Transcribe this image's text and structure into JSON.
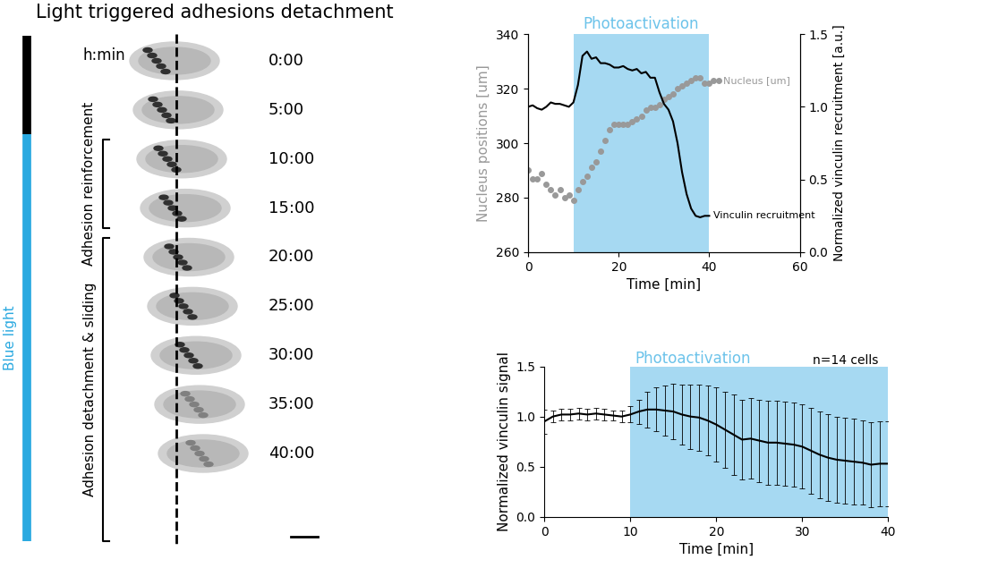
{
  "panel": {
    "title": "Light triggered adhesions detachment",
    "time_header": "h:min",
    "frames": [
      "0:00",
      "5:00",
      "10:00",
      "15:00",
      "20:00",
      "25:00",
      "30:00",
      "35:00",
      "40:00"
    ],
    "light_label": "Blue light",
    "phases": [
      {
        "label": "Adhesion reinforcement",
        "first_frame": 2,
        "last_frame": 3
      },
      {
        "label": "Adhesion detachment & sliding",
        "first_frame": 4,
        "last_frame": 8
      }
    ],
    "light_on_frame": 2
  },
  "chart_data": [
    {
      "type": "line",
      "x_label": "Time [min]",
      "y_label": "Nucleus positions [um]",
      "y2_label": "Normalized vinculin recruitment [a.u.]",
      "photoactivation": {
        "label": "Photoactivation",
        "start": 10,
        "end": 40,
        "color": "#a6d9f2"
      },
      "xlim": [
        0,
        60
      ],
      "xticks": [
        0,
        20,
        40,
        60
      ],
      "ylim": [
        260,
        340
      ],
      "yticks": [
        260,
        280,
        300,
        320,
        340
      ],
      "y2lim": [
        0,
        1.5
      ],
      "y2ticks": [
        {
          "value": 0,
          "label": "0.0"
        },
        0.5,
        {
          "value": 1,
          "label": "1.0"
        },
        1.5
      ],
      "series": [
        {
          "name": "Nucleus [um]",
          "type": "scatter",
          "color": "#999999",
          "marker": "o",
          "x": [
            0,
            1,
            2,
            3,
            4,
            5,
            6,
            7,
            8,
            9,
            10,
            11,
            12,
            13,
            14,
            15,
            16,
            17,
            18,
            19,
            20,
            21,
            22,
            23,
            24,
            25,
            26,
            27,
            28,
            29,
            30,
            31,
            32,
            33,
            34,
            35,
            36,
            37,
            38,
            39,
            40,
            41,
            42
          ],
          "values": [
            290,
            287,
            287,
            289,
            285,
            283,
            281,
            283,
            280,
            281,
            279,
            283,
            286,
            288,
            291,
            293,
            297,
            301,
            305,
            307,
            307,
            307,
            307,
            308,
            309,
            310,
            312,
            313,
            313,
            314,
            316,
            317,
            318,
            320,
            321,
            322,
            323,
            324,
            324,
            322,
            322,
            323,
            323
          ]
        },
        {
          "name": "Vinculin recruitment",
          "type": "line",
          "color": "#000000",
          "axis": "y2",
          "x": [
            0,
            1,
            2,
            3,
            4,
            5,
            6,
            7,
            8,
            9,
            10,
            11,
            12,
            13,
            14,
            15,
            16,
            17,
            18,
            19,
            20,
            21,
            22,
            23,
            24,
            25,
            26,
            27,
            28,
            29,
            30,
            31,
            32,
            33,
            34,
            35,
            36,
            37,
            38,
            39,
            40
          ],
          "values": [
            1.0,
            1.01,
            0.99,
            0.98,
            1.0,
            1.03,
            1.02,
            1.02,
            1.01,
            1.0,
            1.03,
            1.15,
            1.35,
            1.38,
            1.33,
            1.34,
            1.3,
            1.3,
            1.29,
            1.27,
            1.27,
            1.28,
            1.26,
            1.25,
            1.26,
            1.23,
            1.24,
            1.2,
            1.2,
            1.1,
            1.02,
            0.98,
            0.9,
            0.75,
            0.55,
            0.4,
            0.3,
            0.25,
            0.24,
            0.25,
            0.25
          ]
        }
      ]
    },
    {
      "type": "line",
      "x_label": "Time [min]",
      "y_label": "Normalized vinculin signal",
      "annotation": "n=14 cells",
      "photoactivation": {
        "label": "Photoactivation",
        "start": 10,
        "end": 40,
        "color": "#a6d9f2"
      },
      "xlim": [
        0,
        40
      ],
      "xticks": [
        0,
        10,
        20,
        30,
        40
      ],
      "ylim": [
        0,
        1.5
      ],
      "yticks": [
        {
          "value": 0,
          "label": "0.0"
        },
        0.5,
        {
          "value": 1,
          "label": "1.0"
        },
        1.5
      ],
      "series": [
        {
          "name": "Normalized vinculin signal",
          "type": "line",
          "color": "#000000",
          "x": [
            0,
            1,
            2,
            3,
            4,
            5,
            6,
            7,
            8,
            9,
            10,
            11,
            12,
            13,
            14,
            15,
            16,
            17,
            18,
            19,
            20,
            21,
            22,
            23,
            24,
            25,
            26,
            27,
            28,
            29,
            30,
            31,
            32,
            33,
            34,
            35,
            36,
            37,
            38,
            39,
            40
          ],
          "values": [
            0.95,
            1.0,
            1.02,
            1.02,
            1.03,
            1.02,
            1.03,
            1.02,
            1.01,
            1.0,
            1.02,
            1.05,
            1.07,
            1.07,
            1.06,
            1.05,
            1.02,
            1.0,
            0.99,
            0.96,
            0.92,
            0.87,
            0.82,
            0.77,
            0.78,
            0.76,
            0.74,
            0.74,
            0.73,
            0.72,
            0.7,
            0.66,
            0.62,
            0.59,
            0.57,
            0.56,
            0.55,
            0.54,
            0.52,
            0.53,
            0.53
          ],
          "error": [
            0.12,
            0.06,
            0.06,
            0.06,
            0.06,
            0.06,
            0.06,
            0.06,
            0.05,
            0.06,
            0.08,
            0.12,
            0.18,
            0.22,
            0.25,
            0.28,
            0.3,
            0.32,
            0.33,
            0.35,
            0.37,
            0.38,
            0.4,
            0.4,
            0.4,
            0.41,
            0.42,
            0.42,
            0.42,
            0.42,
            0.42,
            0.43,
            0.43,
            0.43,
            0.43,
            0.43,
            0.43,
            0.42,
            0.42,
            0.42,
            0.42
          ]
        }
      ]
    }
  ]
}
